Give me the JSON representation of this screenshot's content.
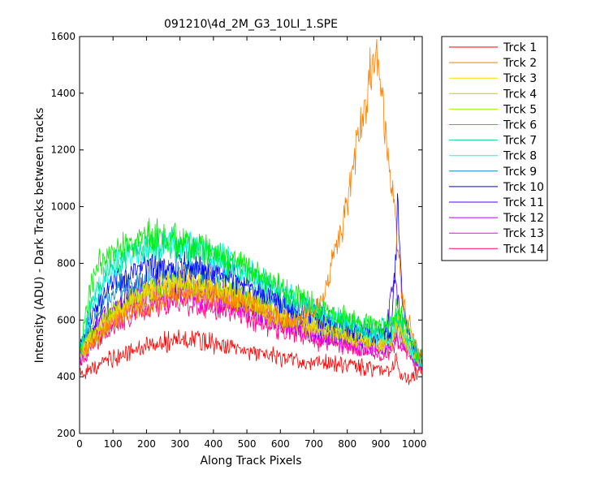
{
  "chart_data": {
    "type": "line",
    "title": "091210\\4d_2M_G3_10LI_1.SPE",
    "xlabel": "Along Track Pixels",
    "ylabel": "Intensity (ADU) - Dark Tracks between tracks",
    "xlim": [
      0,
      1024
    ],
    "ylim": [
      200,
      1600
    ],
    "xticks": [
      0,
      100,
      200,
      300,
      400,
      500,
      600,
      700,
      800,
      900,
      1000
    ],
    "yticks": [
      200,
      400,
      600,
      800,
      1000,
      1200,
      1400,
      1600
    ],
    "grid": false,
    "legend_position": "outside-right",
    "series": [
      {
        "name": "Trck 1",
        "color": "#ff0000",
        "x": [
          0,
          50,
          100,
          150,
          200,
          250,
          300,
          350,
          400,
          450,
          500,
          550,
          600,
          650,
          700,
          750,
          800,
          850,
          900,
          930,
          945,
          955,
          965,
          980,
          1000,
          1020
        ],
        "y": [
          410,
          440,
          465,
          485,
          505,
          520,
          530,
          528,
          520,
          505,
          495,
          478,
          465,
          455,
          448,
          446,
          440,
          432,
          426,
          420,
          460,
          410,
          400,
          400,
          410,
          440
        ]
      },
      {
        "name": "Trck 2",
        "color": "#ff7f00",
        "x": [
          0,
          50,
          100,
          150,
          200,
          250,
          300,
          350,
          400,
          450,
          500,
          550,
          600,
          650,
          700,
          730,
          760,
          790,
          820,
          850,
          870,
          885,
          900,
          920,
          940,
          955,
          970,
          990,
          1010,
          1020
        ],
        "y": [
          470,
          540,
          590,
          630,
          655,
          675,
          690,
          690,
          685,
          675,
          655,
          630,
          605,
          600,
          630,
          700,
          820,
          960,
          1150,
          1350,
          1480,
          1500,
          1430,
          1200,
          1000,
          800,
          640,
          560,
          510,
          480
        ]
      },
      {
        "name": "Trck 3",
        "color": "#ffd700",
        "x": [
          0,
          50,
          100,
          150,
          200,
          250,
          300,
          350,
          400,
          450,
          500,
          550,
          600,
          650,
          700,
          750,
          800,
          850,
          900,
          930,
          950,
          965,
          980,
          1000,
          1020
        ],
        "y": [
          480,
          560,
          620,
          660,
          700,
          720,
          730,
          725,
          710,
          690,
          665,
          640,
          615,
          595,
          580,
          560,
          545,
          530,
          520,
          530,
          600,
          560,
          520,
          480,
          460
        ]
      },
      {
        "name": "Trck 4",
        "color": "#cccc00",
        "x": [
          0,
          50,
          100,
          150,
          200,
          250,
          300,
          350,
          400,
          450,
          500,
          550,
          600,
          650,
          700,
          750,
          800,
          850,
          900,
          930,
          950,
          965,
          980,
          1000,
          1020
        ],
        "y": [
          475,
          550,
          615,
          655,
          690,
          710,
          720,
          715,
          700,
          680,
          658,
          632,
          610,
          590,
          575,
          555,
          540,
          525,
          515,
          525,
          580,
          550,
          510,
          475,
          455
        ]
      },
      {
        "name": "Trck 5",
        "color": "#99ff00",
        "x": [
          0,
          50,
          100,
          150,
          200,
          250,
          300,
          350,
          400,
          450,
          500,
          550,
          600,
          650,
          700,
          750,
          800,
          850,
          900,
          930,
          950,
          965,
          980,
          1000,
          1020
        ],
        "y": [
          485,
          570,
          630,
          670,
          705,
          725,
          735,
          730,
          715,
          695,
          672,
          648,
          625,
          605,
          590,
          570,
          555,
          540,
          530,
          540,
          610,
          570,
          525,
          485,
          465
        ]
      },
      {
        "name": "Trck 6",
        "color": "#00ee00",
        "x": [
          0,
          30,
          50,
          80,
          100,
          150,
          200,
          250,
          300,
          350,
          400,
          450,
          500,
          550,
          600,
          650,
          700,
          750,
          800,
          850,
          900,
          930,
          950,
          965,
          980,
          1000,
          1020
        ],
        "y": [
          480,
          700,
          790,
          820,
          840,
          870,
          895,
          895,
          880,
          860,
          835,
          810,
          780,
          745,
          710,
          680,
          650,
          630,
          610,
          590,
          575,
          580,
          640,
          600,
          560,
          505,
          470
        ]
      },
      {
        "name": "Trck 7",
        "color": "#00dd88",
        "x": [
          0,
          50,
          100,
          150,
          200,
          250,
          300,
          350,
          400,
          450,
          500,
          550,
          600,
          650,
          700,
          750,
          800,
          850,
          900,
          930,
          950,
          965,
          980,
          1000,
          1020
        ],
        "y": [
          480,
          720,
          800,
          835,
          860,
          870,
          865,
          850,
          825,
          800,
          775,
          740,
          705,
          670,
          640,
          615,
          595,
          580,
          570,
          575,
          620,
          590,
          550,
          500,
          465
        ]
      },
      {
        "name": "Trck 8",
        "color": "#00ffee",
        "x": [
          0,
          50,
          100,
          150,
          200,
          250,
          300,
          350,
          400,
          450,
          500,
          550,
          600,
          650,
          700,
          750,
          800,
          850,
          900,
          930,
          950,
          965,
          980,
          1000,
          1020
        ],
        "y": [
          500,
          690,
          790,
          830,
          855,
          870,
          865,
          850,
          830,
          800,
          770,
          740,
          705,
          670,
          640,
          610,
          585,
          565,
          550,
          545,
          600,
          560,
          520,
          480,
          455
        ]
      },
      {
        "name": "Trck 9",
        "color": "#0088cc",
        "x": [
          0,
          50,
          100,
          150,
          200,
          250,
          300,
          350,
          400,
          450,
          500,
          550,
          600,
          650,
          700,
          750,
          800,
          850,
          900,
          930,
          950,
          965,
          980,
          1000,
          1020
        ],
        "y": [
          490,
          630,
          700,
          730,
          750,
          765,
          770,
          765,
          750,
          730,
          705,
          675,
          645,
          620,
          595,
          575,
          560,
          545,
          530,
          535,
          600,
          560,
          520,
          475,
          455
        ]
      },
      {
        "name": "Trck 10",
        "color": "#0000ff",
        "x": [
          0,
          50,
          100,
          150,
          200,
          250,
          300,
          350,
          400,
          450,
          500,
          550,
          600,
          650,
          700,
          750,
          800,
          850,
          900,
          930,
          945,
          950,
          955,
          965,
          980,
          1000,
          1020
        ],
        "y": [
          500,
          650,
          730,
          760,
          780,
          790,
          790,
          785,
          770,
          750,
          725,
          695,
          665,
          640,
          615,
          595,
          575,
          560,
          548,
          560,
          800,
          1030,
          900,
          640,
          560,
          500,
          470
        ]
      },
      {
        "name": "Trck 11",
        "color": "#5500ee",
        "x": [
          0,
          50,
          100,
          150,
          200,
          250,
          300,
          350,
          400,
          450,
          500,
          550,
          600,
          650,
          700,
          750,
          800,
          850,
          900,
          925,
          940,
          950,
          960,
          980,
          1000,
          1020
        ],
        "y": [
          470,
          590,
          650,
          690,
          715,
          730,
          735,
          730,
          715,
          695,
          670,
          645,
          620,
          595,
          575,
          555,
          540,
          530,
          525,
          620,
          740,
          680,
          580,
          520,
          480,
          460
        ]
      },
      {
        "name": "Trck 12",
        "color": "#bb00ee",
        "x": [
          0,
          50,
          100,
          150,
          200,
          250,
          300,
          350,
          400,
          450,
          500,
          550,
          600,
          650,
          700,
          750,
          800,
          850,
          900,
          930,
          950,
          965,
          980,
          1000,
          1020
        ],
        "y": [
          465,
          575,
          635,
          670,
          695,
          710,
          712,
          705,
          690,
          670,
          648,
          625,
          600,
          580,
          562,
          545,
          530,
          515,
          505,
          515,
          560,
          530,
          500,
          470,
          450
        ]
      },
      {
        "name": "Trck 13",
        "color": "#ff00ee",
        "x": [
          0,
          50,
          100,
          150,
          200,
          250,
          300,
          350,
          400,
          450,
          500,
          550,
          600,
          650,
          700,
          750,
          800,
          850,
          900,
          930,
          950,
          965,
          980,
          1000,
          1020
        ],
        "y": [
          455,
          550,
          610,
          645,
          670,
          685,
          690,
          685,
          672,
          655,
          632,
          610,
          588,
          570,
          552,
          535,
          520,
          505,
          495,
          505,
          545,
          515,
          490,
          460,
          445
        ]
      },
      {
        "name": "Trck 14",
        "color": "#ff0077",
        "x": [
          0,
          50,
          100,
          150,
          200,
          250,
          300,
          350,
          400,
          450,
          500,
          550,
          600,
          650,
          700,
          750,
          800,
          850,
          900,
          930,
          950,
          965,
          980,
          1000,
          1020
        ],
        "y": [
          445,
          525,
          580,
          615,
          640,
          655,
          662,
          658,
          645,
          628,
          608,
          588,
          568,
          550,
          535,
          520,
          505,
          492,
          482,
          490,
          530,
          500,
          478,
          452,
          438
        ]
      }
    ]
  }
}
